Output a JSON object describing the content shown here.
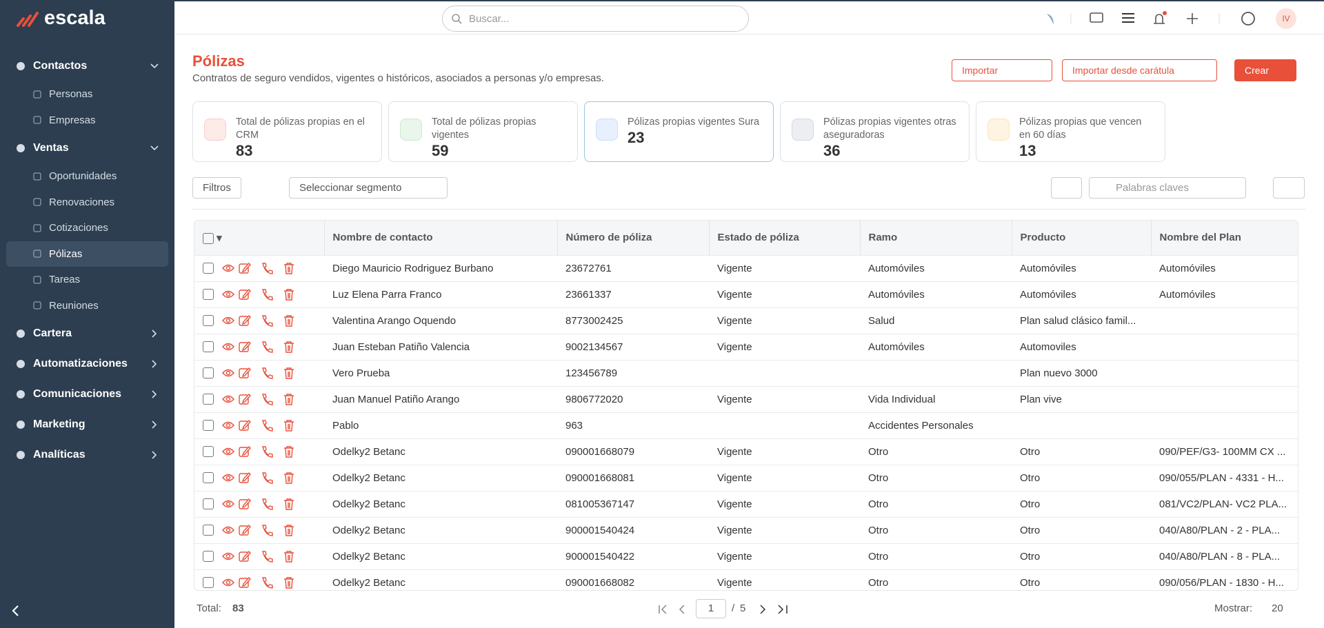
{
  "brand": "escala",
  "header": {
    "search_placeholder": "Buscar...",
    "avatar": "IV"
  },
  "sidebar": {
    "sections": [
      {
        "label": "Contactos",
        "expanded": true,
        "items": [
          {
            "label": "Personas"
          },
          {
            "label": "Empresas"
          }
        ]
      },
      {
        "label": "Ventas",
        "expanded": true,
        "items": [
          {
            "label": "Oportunidades"
          },
          {
            "label": "Renovaciones"
          },
          {
            "label": "Cotizaciones"
          },
          {
            "label": "Pólizas",
            "active": true
          },
          {
            "label": "Tareas"
          },
          {
            "label": "Reuniones"
          }
        ]
      },
      {
        "label": "Cartera",
        "expanded": false,
        "items": []
      },
      {
        "label": "Automatizaciones",
        "expanded": false,
        "items": []
      },
      {
        "label": "Comunicaciones",
        "expanded": false,
        "items": []
      },
      {
        "label": "Marketing",
        "expanded": false,
        "items": []
      },
      {
        "label": "Analíticas",
        "expanded": false,
        "items": []
      }
    ]
  },
  "page": {
    "title": "Pólizas",
    "subtitle": "Contratos de seguro vendidos, vigentes o históricos, asociados a personas y/o empresas.",
    "buttons": {
      "import": "Importar",
      "import_cover": "Importar desde carátula",
      "create": "Crear"
    }
  },
  "stats": [
    {
      "label": "Total de pólizas propias en el CRM",
      "value": 83,
      "color": "#e8503a"
    },
    {
      "label": "Total de pólizas propias vigentes",
      "value": 59,
      "color": "#4caf50"
    },
    {
      "label": "Pólizas propias vigentes Sura",
      "value": 23,
      "color": "#3b82f6"
    },
    {
      "label": "Pólizas propias vigentes otras aseguradoras",
      "value": 36,
      "color": "#64748b"
    },
    {
      "label": "Pólizas propias que vencen en 60 días",
      "value": 13,
      "color": "#f59e0b"
    }
  ],
  "toolbar": {
    "filters": "Filtros",
    "segment": "Seleccionar segmento",
    "keywords_placeholder": "Palabras claves"
  },
  "table": {
    "columns": [
      "Nombre de contacto",
      "Número de póliza",
      "Estado de póliza",
      "Ramo",
      "Producto",
      "Nombre del Plan"
    ],
    "rows": [
      [
        "Diego Mauricio Rodriguez Burbano",
        "23672761",
        "Vigente",
        "Automóviles",
        "Automóviles",
        "Automóviles"
      ],
      [
        "Luz Elena Parra Franco",
        "23661337",
        "Vigente",
        "Automóviles",
        "Automóviles",
        "Automóviles"
      ],
      [
        "Valentina Arango Oquendo",
        "8773002425",
        "Vigente",
        "Salud",
        "Plan salud clásico famil...",
        ""
      ],
      [
        "Juan Esteban Patiño Valencia",
        "9002134567",
        "Vigente",
        "Automóviles",
        "Automoviles",
        ""
      ],
      [
        "Vero Prueba",
        "123456789",
        "",
        "",
        "Plan nuevo 3000",
        ""
      ],
      [
        "Juan Manuel Patiño Arango",
        "9806772020",
        "Vigente",
        "Vida Individual",
        "Plan vive",
        ""
      ],
      [
        "Pablo",
        "963",
        "",
        "Accidentes Personales",
        "",
        ""
      ],
      [
        "Odelky2 Betanc",
        "090001668079",
        "Vigente",
        "Otro",
        "Otro",
        "090/PEF/G3- 100MM CX ..."
      ],
      [
        "Odelky2 Betanc",
        "090001668081",
        "Vigente",
        "Otro",
        "Otro",
        "090/055/PLAN - 4331 - H..."
      ],
      [
        "Odelky2 Betanc",
        "081005367147",
        "Vigente",
        "Otro",
        "Otro",
        "081/VC2/PLAN- VC2 PLA..."
      ],
      [
        "Odelky2 Betanc",
        "900001540424",
        "Vigente",
        "Otro",
        "Otro",
        "040/A80/PLAN - 2 - PLA..."
      ],
      [
        "Odelky2 Betanc",
        "900001540422",
        "Vigente",
        "Otro",
        "Otro",
        "040/A80/PLAN - 8 - PLA..."
      ],
      [
        "Odelky2 Betanc",
        "090001668082",
        "Vigente",
        "Otro",
        "Otro",
        "090/056/PLAN - 1830 - H..."
      ]
    ]
  },
  "footer": {
    "total_label": "Total:",
    "total": 83,
    "page": 1,
    "page_separator": "/",
    "page_count": 5,
    "show_label": "Mostrar:",
    "page_size": 20
  }
}
